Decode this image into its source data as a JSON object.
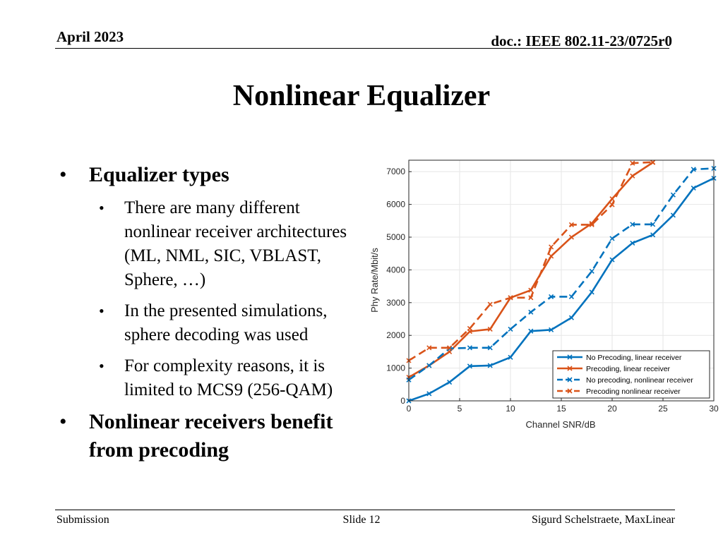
{
  "header": {
    "date": "April 2023",
    "doc": "doc.: IEEE 802.11-23/0725r0"
  },
  "title": "Nonlinear Equalizer",
  "bullets": [
    {
      "text": "Equalizer types",
      "sub": [
        "There are many different nonlinear receiver architectures (ML, NML, SIC, VBLAST, Sphere, …)",
        "In the presented simulations, sphere decoding was used",
        "For complexity reasons, it is limited to MCS9 (256-QAM)"
      ]
    },
    {
      "text": "Nonlinear receivers benefit from precoding",
      "sub": []
    }
  ],
  "bullet_glyph": "•",
  "footer": {
    "left": "Submission",
    "center": "Slide 12",
    "right": "Sigurd Schelstraete, MaxLinear"
  },
  "chart_data": {
    "type": "line",
    "xlabel": "Channel SNR/dB",
    "ylabel": "Phy Rate/Mbit/s",
    "xlim": [
      0,
      30
    ],
    "ylim": [
      0,
      7350
    ],
    "xticks": [
      0,
      5,
      10,
      15,
      20,
      25,
      30
    ],
    "yticks": [
      0,
      1000,
      2000,
      3000,
      4000,
      5000,
      6000,
      7000
    ],
    "grid": true,
    "legend_position": "bottom-right",
    "series": [
      {
        "name": "No Precoding, linear receiver",
        "color": "#0072BD",
        "dash": false,
        "x": [
          0,
          2,
          4,
          6,
          8,
          10,
          12,
          14,
          16,
          18,
          20,
          22,
          24,
          26,
          28,
          30
        ],
        "y": [
          0,
          220,
          570,
          1060,
          1080,
          1330,
          2130,
          2170,
          2540,
          3320,
          4310,
          4820,
          5070,
          5670,
          6500,
          6800
        ]
      },
      {
        "name": "Precoding, linear receiver",
        "color": "#D95319",
        "dash": false,
        "x": [
          0,
          2,
          4,
          6,
          8,
          10,
          12,
          14,
          16,
          18,
          20,
          22,
          24
        ],
        "y": [
          720,
          1080,
          1500,
          2120,
          2190,
          3150,
          3380,
          4420,
          5000,
          5420,
          6170,
          6870,
          7280
        ]
      },
      {
        "name": "No precoding, nonlinear receiver",
        "color": "#0072BD",
        "dash": true,
        "x": [
          0,
          2,
          4,
          6,
          8,
          10,
          12,
          14,
          16,
          18,
          20,
          22,
          24,
          26,
          28,
          30
        ],
        "y": [
          640,
          1080,
          1600,
          1620,
          1620,
          2190,
          2710,
          3180,
          3180,
          3960,
          4960,
          5390,
          5390,
          6290,
          7070,
          7100
        ]
      },
      {
        "name": "Precoding nonlinear receiver",
        "color": "#D95319",
        "dash": true,
        "x": [
          0,
          2,
          4,
          6,
          8,
          10,
          12,
          14,
          16,
          18,
          20,
          22,
          24
        ],
        "y": [
          1230,
          1620,
          1620,
          2210,
          2950,
          3150,
          3150,
          4700,
          5380,
          5380,
          5990,
          7260,
          7290
        ]
      }
    ]
  }
}
